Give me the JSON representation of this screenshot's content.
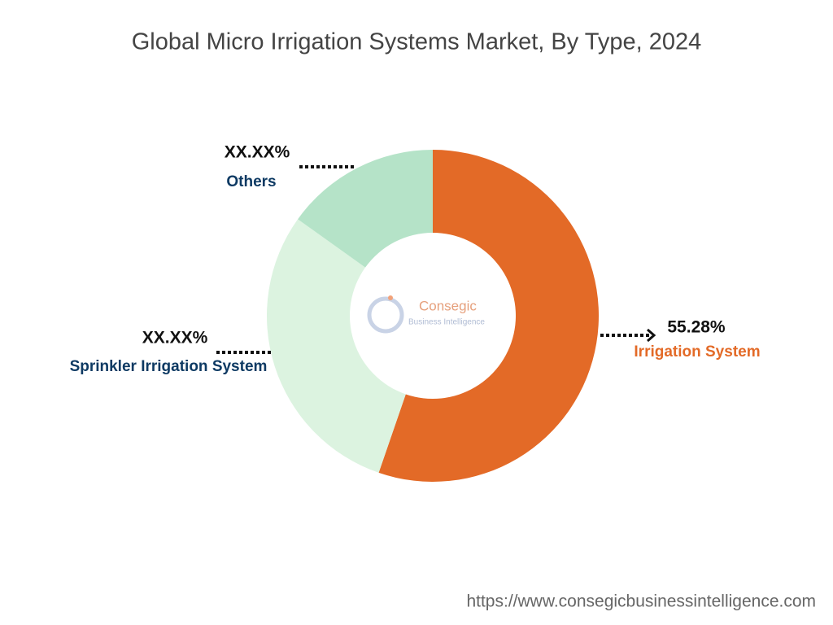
{
  "chart_data": {
    "type": "donut",
    "title": "Global Micro Irrigation Systems Market, By Type, 2024",
    "categories": [
      "Irrigation System",
      "Sprinkler Irrigation System",
      "Others"
    ],
    "values": [
      55.28,
      29.6,
      15.12
    ],
    "value_labels": [
      "55.28%",
      "XX.XX%",
      "XX.XX%"
    ],
    "colors": [
      "#e36a27",
      "#dcf3e0",
      "#b5e3c8"
    ],
    "label_colors": [
      "#e36a27",
      "#0e3a63",
      "#0e3a63"
    ],
    "logo": {
      "name": "Consegic",
      "tagline": "Business Intelligence"
    },
    "source": "https://www.consegicbusinessintelligence.com"
  }
}
